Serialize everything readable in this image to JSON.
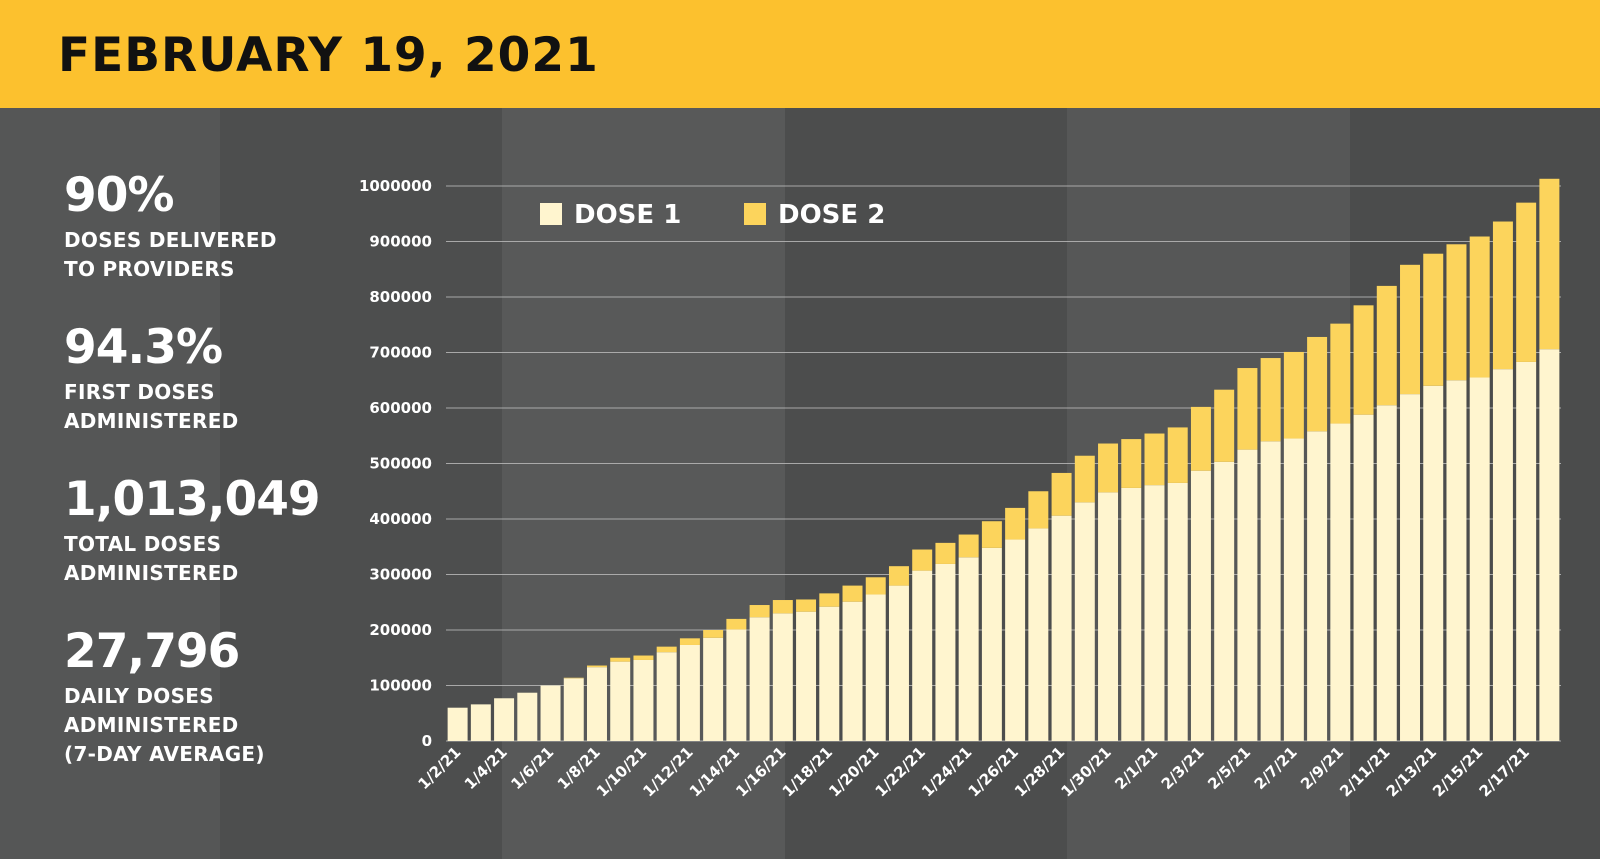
{
  "header": {
    "title": "FEBRUARY 19, 2021"
  },
  "stats": [
    {
      "value": "90%",
      "label_lines": [
        "DOSES DELIVERED",
        "TO PROVIDERS"
      ]
    },
    {
      "value": "94.3%",
      "label_lines": [
        "FIRST DOSES",
        "ADMINISTERED"
      ]
    },
    {
      "value": "1,013,049",
      "label_lines": [
        "TOTAL DOSES",
        "ADMINISTERED"
      ]
    },
    {
      "value": "27,796",
      "label_lines": [
        "DAILY DOSES",
        "ADMINISTERED",
        "(7-DAY AVERAGE)"
      ]
    }
  ],
  "colors": {
    "header_bg": "#fcc12e",
    "dose1": "#fff5cf",
    "dose2": "#fcd45c",
    "background": "#4f5050"
  },
  "chart_data": {
    "type": "bar",
    "stacked": true,
    "categories": [
      "1/2/21",
      "1/3/21",
      "1/4/21",
      "1/5/21",
      "1/6/21",
      "1/7/21",
      "1/8/21",
      "1/9/21",
      "1/10/21",
      "1/11/21",
      "1/12/21",
      "1/13/21",
      "1/14/21",
      "1/15/21",
      "1/16/21",
      "1/17/21",
      "1/18/21",
      "1/19/21",
      "1/20/21",
      "1/21/21",
      "1/22/21",
      "1/23/21",
      "1/24/21",
      "1/25/21",
      "1/26/21",
      "1/27/21",
      "1/28/21",
      "1/29/21",
      "1/30/21",
      "1/31/21",
      "2/1/21",
      "2/2/21",
      "2/3/21",
      "2/4/21",
      "2/5/21",
      "2/6/21",
      "2/7/21",
      "2/8/21",
      "2/9/21",
      "2/10/21",
      "2/11/21",
      "2/12/21",
      "2/13/21",
      "2/14/21",
      "2/15/21",
      "2/16/21",
      "2/17/21",
      "2/18/21"
    ],
    "tick_labels": [
      "1/2/21",
      "",
      "1/4/21",
      "",
      "1/6/21",
      "",
      "1/8/21",
      "",
      "1/10/21",
      "",
      "1/12/21",
      "",
      "1/14/21",
      "",
      "1/16/21",
      "",
      "1/18/21",
      "",
      "1/20/21",
      "",
      "1/22/21",
      "",
      "1/24/21",
      "",
      "1/26/21",
      "",
      "1/28/21",
      "",
      "1/30/21",
      "",
      "2/1/21",
      "",
      "2/3/21",
      "",
      "2/5/21",
      "",
      "2/7/21",
      "",
      "2/9/21",
      "",
      "2/11/21",
      "",
      "2/13/21",
      "",
      "2/15/21",
      "",
      "2/17/21",
      ""
    ],
    "series": [
      {
        "name": "DOSE 1",
        "values": [
          60000,
          66000,
          77000,
          87000,
          100000,
          113000,
          133000,
          143000,
          146000,
          160000,
          173000,
          186000,
          201000,
          223000,
          230000,
          233000,
          242000,
          251000,
          264000,
          280000,
          307000,
          319000,
          331000,
          348000,
          363000,
          383000,
          406000,
          430000,
          448000,
          456000,
          461000,
          465000,
          487000,
          503000,
          525000,
          540000,
          545000,
          558000,
          572000,
          588000,
          605000,
          625000,
          640000,
          650000,
          655000,
          670000,
          683000,
          706000
        ]
      },
      {
        "name": "DOSE 2",
        "values": [
          0,
          0,
          0,
          0,
          0,
          1000,
          3000,
          7000,
          8000,
          10000,
          12000,
          14000,
          19000,
          22000,
          24000,
          22000,
          24000,
          29000,
          31000,
          35000,
          38000,
          38000,
          41000,
          48000,
          57000,
          67000,
          77000,
          84000,
          88000,
          88000,
          93000,
          100000,
          115000,
          130000,
          147000,
          150000,
          156000,
          170000,
          180000,
          197000,
          215000,
          233000,
          238000,
          245000,
          254000,
          266000,
          287000,
          307000
        ]
      }
    ],
    "ylim": [
      0,
      1000000
    ],
    "yticks": [
      0,
      100000,
      200000,
      300000,
      400000,
      500000,
      600000,
      700000,
      800000,
      900000,
      1000000
    ],
    "ytick_labels": [
      "0",
      "100000",
      "200000",
      "300000",
      "400000",
      "500000",
      "600000",
      "700000",
      "800000",
      "900000",
      "1000000"
    ],
    "xlabel": "",
    "ylabel": "",
    "legend_position": "top-left",
    "grid": true
  }
}
